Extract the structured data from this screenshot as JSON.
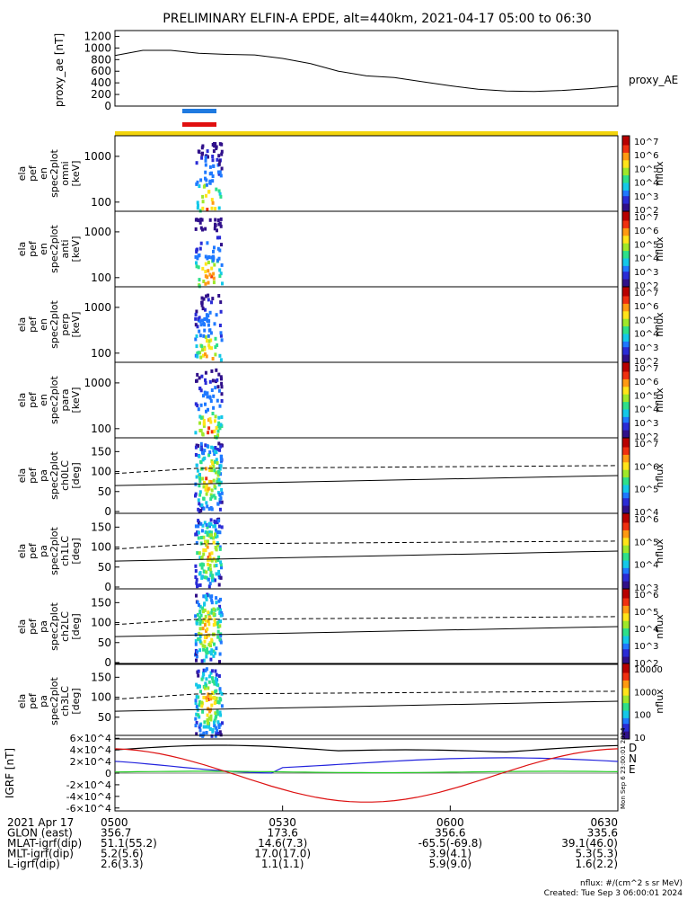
{
  "title": "PRELIMINARY ELFIN-A EPDE, alt=440km, 2021-04-17 05:00 to 06:30",
  "proxy_ae": {
    "ylabel": "proxy_ae [nT]",
    "legend": "proxy_AE",
    "yticks": [
      "1200",
      "1000",
      "800",
      "600",
      "400",
      "200",
      "0"
    ],
    "ylim": [
      0,
      1300
    ]
  },
  "panels": [
    {
      "id": "omni",
      "label_lines": [
        "ela",
        "pef",
        "en",
        "spec2plot",
        "omni",
        "[keV]"
      ],
      "ticks": [
        "1000",
        "100"
      ]
    },
    {
      "id": "anti",
      "label_lines": [
        "ela",
        "pef",
        "en",
        "spec2plot",
        "anti",
        "[keV]"
      ],
      "ticks": [
        "1000",
        "100"
      ]
    },
    {
      "id": "perp",
      "label_lines": [
        "ela",
        "pef",
        "en",
        "spec2plot",
        "perp",
        "[keV]"
      ],
      "ticks": [
        "1000",
        "100"
      ]
    },
    {
      "id": "para",
      "label_lines": [
        "ela",
        "pef",
        "en",
        "spec2plot",
        "para",
        "[keV]"
      ],
      "ticks": [
        "1000",
        "100"
      ]
    },
    {
      "id": "ch0LC",
      "label_lines": [
        "ela",
        "pef",
        "pa",
        "spec2plot",
        "ch0LC",
        "[deg]"
      ],
      "ticks": [
        "150",
        "100",
        "50",
        "0"
      ]
    },
    {
      "id": "ch1LC",
      "label_lines": [
        "ela",
        "pef",
        "pa",
        "spec2plot",
        "ch1LC",
        "[deg]"
      ],
      "ticks": [
        "150",
        "100",
        "50",
        "0"
      ]
    },
    {
      "id": "ch2LC",
      "label_lines": [
        "ela",
        "pef",
        "pa",
        "spec2plot",
        "ch2LC",
        "[deg]"
      ],
      "ticks": [
        "150",
        "100",
        "50",
        "0"
      ]
    },
    {
      "id": "ch3LC",
      "label_lines": [
        "ela",
        "pef",
        "pa",
        "spec2plot",
        "ch3LC",
        "[deg]"
      ],
      "ticks": [
        "150",
        "100",
        "50"
      ]
    }
  ],
  "colorbars": [
    {
      "ticks": [
        "10^7",
        "10^6",
        "10^5",
        "10^4",
        "10^3",
        "10^2"
      ],
      "label": "nflux"
    },
    {
      "ticks": [
        "10^7",
        "10^6",
        "10^5",
        "10^4",
        "10^3",
        "10^2"
      ],
      "label": "nflux"
    },
    {
      "ticks": [
        "10^7",
        "10^6",
        "10^5",
        "10^4",
        "10^3",
        "10^2"
      ],
      "label": "nflux"
    },
    {
      "ticks": [
        "10^7",
        "10^6",
        "10^5",
        "10^4",
        "10^3",
        "10^2"
      ],
      "label": "nflux"
    },
    {
      "ticks": [
        "10^7",
        "10^6",
        "10^5",
        "10^4"
      ],
      "label": "nflux"
    },
    {
      "ticks": [
        "10^6",
        "10^5",
        "10^4",
        "10^3"
      ],
      "label": "nflux"
    },
    {
      "ticks": [
        "10^6",
        "10^5",
        "10^4",
        "10^3",
        "10^2"
      ],
      "label": "nflux"
    },
    {
      "ticks": [
        "10000",
        "1000",
        "100",
        "10"
      ],
      "label": "nflux"
    }
  ],
  "igrf": {
    "ylabel": "IGRF [nT]",
    "yticks": [
      "6×10^4",
      "4×10^4",
      "2×10^4",
      "0",
      "-2×10^4",
      "-4×10^4",
      "-6×10^4"
    ],
    "legend": [
      "D",
      "N",
      "E"
    ],
    "colors": {
      "D": "#000000",
      "N": "#2222dd",
      "E": "#22cc22",
      "red": "#dd1111"
    }
  },
  "side_stamp": "Mon Sep  6 23:00:01 2024",
  "colors": {
    "top_bar": "#f2d40c",
    "blue_marker": "#1f7ae0",
    "red_marker": "#e01010"
  },
  "x_axis": {
    "ticks": [
      "0500",
      "0530",
      "0600",
      "0630"
    ],
    "xlim": [
      "05:00",
      "06:30"
    ]
  },
  "footer": {
    "rows": [
      {
        "label": "2021 Apr 17",
        "values": [
          "0500",
          "0530",
          "0600",
          "0630"
        ]
      },
      {
        "label": "GLON (east)",
        "values": [
          "356.7",
          "173.6",
          "356.6",
          "335.6"
        ]
      },
      {
        "label": "MLAT-igrf(dip)",
        "values": [
          "51.1(55.2)",
          "14.6(7.3)",
          "-65.5(-69.8)",
          "39.1(46.0)"
        ]
      },
      {
        "label": "MLT-igrf(dip)",
        "values": [
          "5.2(5.6)",
          "17.0(17.0)",
          "3.9(4.1)",
          "5.3(5.3)"
        ]
      },
      {
        "label": "L-igrf(dip)",
        "values": [
          "2.6(3.3)",
          "1.1(1.1)",
          "5.9(9.0)",
          "1.6(2.2)"
        ]
      }
    ],
    "units_note": "nflux: #/(cm^2 s sr MeV)",
    "created": "Created: Tue Sep  3 06:00:01 2024"
  },
  "chart_data": {
    "type": "line",
    "title": "PRELIMINARY ELFIN-A EPDE, alt=440km, 2021-04-17 05:00 to 06:30",
    "x": [
      0,
      5,
      10,
      15,
      20,
      25,
      30,
      35,
      40,
      45,
      50,
      55,
      60,
      65,
      70,
      75,
      80,
      85,
      90
    ],
    "xlabel": "",
    "xunits": "minutes after 05:00",
    "series": [
      {
        "name": "proxy_AE",
        "values": [
          870,
          960,
          960,
          910,
          890,
          880,
          820,
          730,
          600,
          520,
          490,
          420,
          350,
          290,
          260,
          250,
          270,
          300,
          340
        ]
      }
    ],
    "ylabel": "proxy_ae [nT]",
    "ylim": [
      0,
      1300
    ],
    "grid": false,
    "legend": "right"
  }
}
